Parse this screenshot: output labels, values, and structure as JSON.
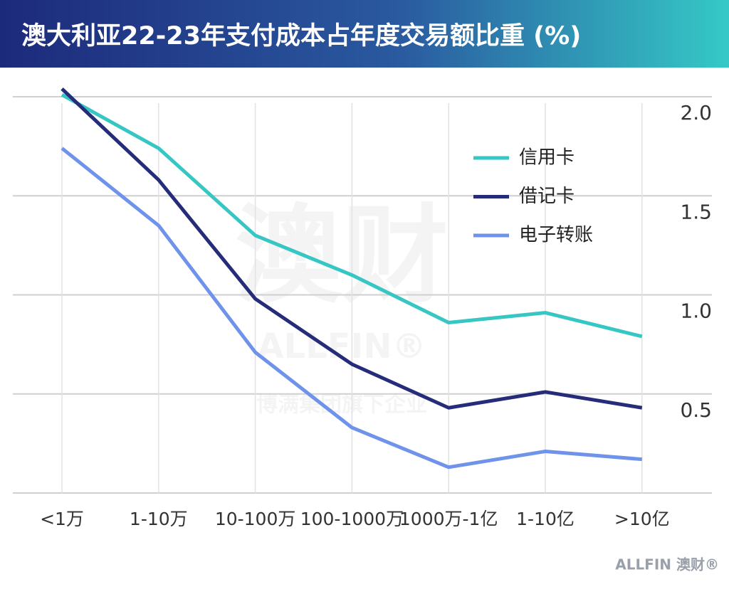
{
  "chart_data": {
    "type": "line",
    "title": "澳大利亚22-23年支付成本占年度交易额比重 (%)",
    "categories": [
      "<1万",
      "1-10万",
      "10-100万",
      "100-1000万",
      "1000万-1亿",
      "1-10亿",
      ">10亿"
    ],
    "series": [
      {
        "name": "信用卡",
        "color": "#36c6c3",
        "values": [
          2.01,
          1.74,
          1.3,
          1.1,
          0.86,
          0.91,
          0.79
        ]
      },
      {
        "name": "借记卡",
        "color": "#252d7a",
        "values": [
          2.04,
          1.58,
          0.98,
          0.65,
          0.43,
          0.51,
          0.43
        ]
      },
      {
        "name": "电子转账",
        "color": "#6f92ea",
        "values": [
          1.74,
          1.35,
          0.71,
          0.33,
          0.13,
          0.21,
          0.17
        ]
      }
    ],
    "ylim": [
      0,
      2
    ],
    "yticks": [
      {
        "value": 0.5,
        "label": "0.5"
      },
      {
        "value": 1,
        "label": "1.0"
      },
      {
        "value": 1.5,
        "label": "1.5"
      },
      {
        "value": 2,
        "label": "2.0"
      }
    ],
    "y_axis_side": "right",
    "grid": true,
    "legend_position": "upper right",
    "watermark": [
      "澳财",
      "ALLFIN®",
      "博满集团旗下企业"
    ],
    "brand": "ALLFIN 澳财®"
  }
}
